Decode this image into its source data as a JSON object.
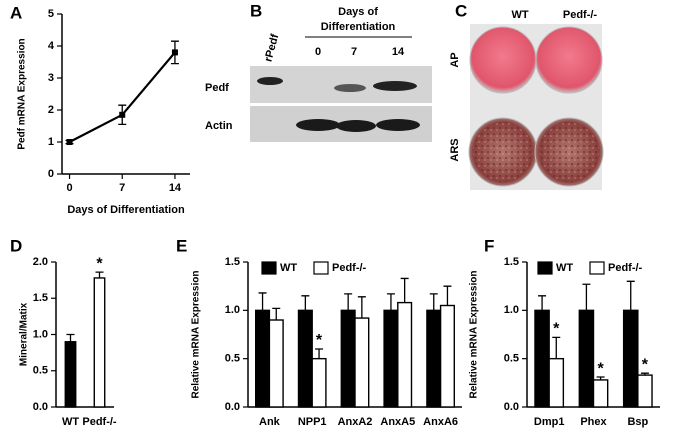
{
  "chart_data": [
    {
      "type": "line",
      "label": "A",
      "x_label": "Days of Differentiation",
      "y_label": "Pedf mRNA Expression",
      "x": [
        0,
        7,
        14
      ],
      "values": [
        1,
        1.85,
        3.8
      ],
      "errors": [
        0.05,
        0.3,
        0.35
      ],
      "color": "#000000",
      "xlim": [
        -1,
        16
      ],
      "xticks": [
        0,
        7,
        14
      ],
      "ylim": [
        0,
        5
      ],
      "yticks": [
        0,
        1,
        2,
        3,
        4,
        5
      ]
    },
    {
      "type": "bar",
      "label": "D",
      "y_label": "Mineral/Matix",
      "categories": [
        "WT",
        "Pedf-/-"
      ],
      "values": [
        0.9,
        1.78
      ],
      "errors": [
        0.1,
        0.08
      ],
      "colors": [
        "#000000",
        "#ffffff"
      ],
      "annotations": [
        null,
        "*"
      ],
      "ylim": [
        0,
        2
      ],
      "yticks": [
        {
          "value": 0,
          "label": "0.0"
        },
        {
          "value": 0.5,
          "label": "0.5"
        },
        {
          "value": 1,
          "label": "1.0"
        },
        {
          "value": 1.5,
          "label": "1.5"
        },
        {
          "value": 2,
          "label": "2.0"
        }
      ]
    },
    {
      "type": "bar",
      "label": "E",
      "y_label": "Relative mRNA Expression",
      "legend": true,
      "categories": [
        "Ank",
        "NPP1",
        "AnxA2",
        "AnxA5",
        "AnxA6"
      ],
      "series": [
        {
          "name": "WT",
          "color": "#000000",
          "values": [
            1,
            1,
            1,
            1,
            1
          ],
          "errors": [
            0.18,
            0.15,
            0.17,
            0.17,
            0.17
          ]
        },
        {
          "name": "Pedf-/-",
          "color": "#ffffff",
          "values": [
            0.9,
            0.5,
            0.92,
            1.08,
            1.05
          ],
          "errors": [
            0.12,
            0.1,
            0.22,
            0.25,
            0.2
          ],
          "annotations": [
            null,
            "*",
            null,
            null,
            null
          ]
        }
      ],
      "ylim": [
        0,
        1.5
      ],
      "yticks": [
        {
          "value": 0,
          "label": "0.0"
        },
        {
          "value": 0.5,
          "label": "0.5"
        },
        {
          "value": 1,
          "label": "1.0"
        },
        {
          "value": 1.5,
          "label": "1.5"
        }
      ]
    },
    {
      "type": "bar",
      "label": "F",
      "y_label": "Relative mRNA Expression",
      "legend": true,
      "categories": [
        "Dmp1",
        "Phex",
        "Bsp"
      ],
      "series": [
        {
          "name": "WT",
          "color": "#000000",
          "values": [
            1,
            1,
            1
          ],
          "errors": [
            0.15,
            0.27,
            0.3
          ]
        },
        {
          "name": "Pedf-/-",
          "color": "#ffffff",
          "values": [
            0.5,
            0.28,
            0.33
          ],
          "errors": [
            0.22,
            0.03,
            0.02
          ],
          "annotations": [
            "*",
            "*",
            "*"
          ]
        }
      ],
      "ylim": [
        0,
        1.5
      ],
      "yticks": [
        {
          "value": 0,
          "label": "0.0"
        },
        {
          "value": 0.5,
          "label": "0.5"
        },
        {
          "value": 1,
          "label": "1.0"
        },
        {
          "value": 1.5,
          "label": "1.5"
        }
      ]
    }
  ],
  "blot": {
    "label": "B",
    "lane_title_1": "Days of",
    "lane_title_2": "Differentiation",
    "standard": "rPedf",
    "lanes": [
      "0",
      "7",
      "14"
    ],
    "rows": [
      "Pedf",
      "Actin"
    ]
  },
  "photos": {
    "label": "C",
    "columns": [
      "WT",
      "Pedf-/-"
    ],
    "rows": [
      "AP",
      "ARS"
    ]
  }
}
